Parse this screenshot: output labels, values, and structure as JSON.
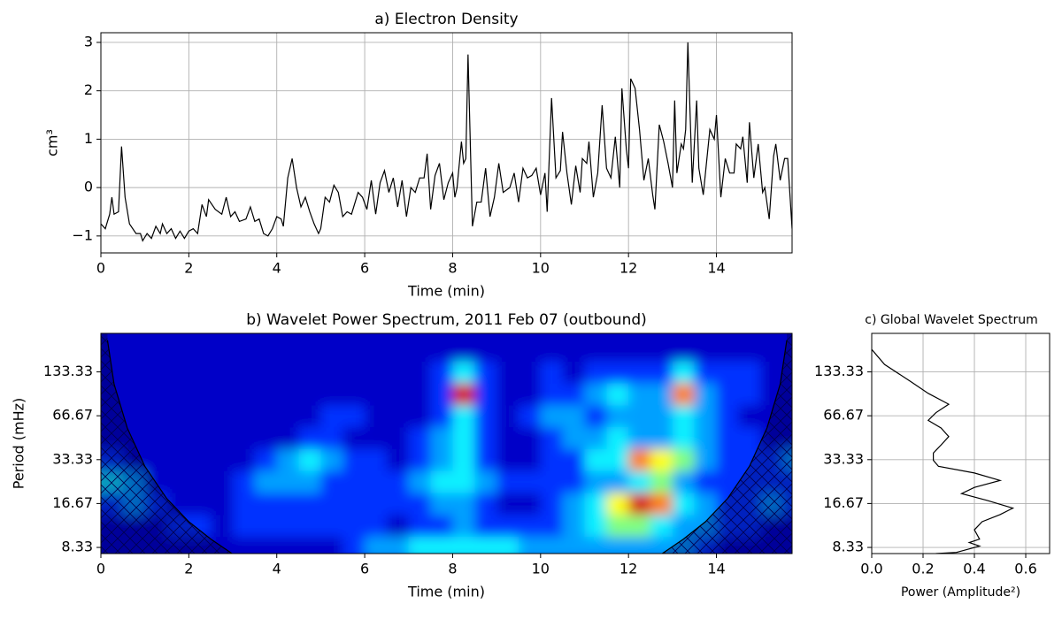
{
  "chart_data": [
    {
      "type": "line",
      "title": "a) Electron Density",
      "xlabel": "Time (min)",
      "ylabel": "cm³",
      "color": "#000000",
      "grid": true,
      "x": [
        0,
        0.1,
        0.2,
        0.25,
        0.3,
        0.4,
        0.47,
        0.55,
        0.65,
        0.8,
        0.9,
        0.95,
        1.05,
        1.15,
        1.25,
        1.35,
        1.4,
        1.5,
        1.6,
        1.7,
        1.8,
        1.9,
        2.0,
        2.1,
        2.2,
        2.3,
        2.4,
        2.45,
        2.6,
        2.75,
        2.85,
        2.95,
        3.05,
        3.15,
        3.3,
        3.4,
        3.5,
        3.6,
        3.7,
        3.8,
        3.9,
        4.0,
        4.1,
        4.15,
        4.25,
        4.35,
        4.45,
        4.55,
        4.65,
        4.75,
        4.85,
        4.95,
        5.0,
        5.1,
        5.2,
        5.3,
        5.4,
        5.5,
        5.6,
        5.7,
        5.85,
        5.95,
        6.05,
        6.15,
        6.25,
        6.35,
        6.45,
        6.55,
        6.65,
        6.75,
        6.85,
        6.95,
        7.05,
        7.15,
        7.25,
        7.35,
        7.42,
        7.5,
        7.6,
        7.7,
        7.8,
        7.9,
        8.0,
        8.05,
        8.1,
        8.2,
        8.25,
        8.3,
        8.35,
        8.45,
        8.55,
        8.65,
        8.75,
        8.85,
        8.95,
        9.05,
        9.15,
        9.3,
        9.4,
        9.5,
        9.6,
        9.7,
        9.8,
        9.9,
        10.0,
        10.1,
        10.15,
        10.25,
        10.35,
        10.45,
        10.5,
        10.6,
        10.7,
        10.8,
        10.9,
        10.95,
        11.05,
        11.1,
        11.2,
        11.3,
        11.4,
        11.5,
        11.6,
        11.7,
        11.8,
        11.85,
        11.95,
        12.0,
        12.05,
        12.15,
        12.25,
        12.35,
        12.45,
        12.55,
        12.6,
        12.7,
        12.8,
        12.9,
        13.0,
        13.05,
        13.1,
        13.2,
        13.25,
        13.3,
        13.35,
        13.45,
        13.55,
        13.6,
        13.7,
        13.85,
        13.95,
        14.0,
        14.1,
        14.2,
        14.3,
        14.4,
        14.45,
        14.55,
        14.6,
        14.7,
        14.75,
        14.85,
        14.95,
        15.05,
        15.1,
        15.2,
        15.3,
        15.35,
        15.45,
        15.55,
        15.62,
        15.72
      ],
      "values": [
        -0.75,
        -0.85,
        -0.55,
        -0.2,
        -0.55,
        -0.5,
        0.85,
        -0.2,
        -0.75,
        -0.95,
        -0.95,
        -1.1,
        -0.95,
        -1.05,
        -0.8,
        -0.95,
        -0.75,
        -0.95,
        -0.85,
        -1.05,
        -0.9,
        -1.05,
        -0.9,
        -0.85,
        -0.95,
        -0.35,
        -0.6,
        -0.25,
        -0.45,
        -0.55,
        -0.2,
        -0.6,
        -0.5,
        -0.7,
        -0.65,
        -0.4,
        -0.7,
        -0.65,
        -0.95,
        -1.0,
        -0.85,
        -0.6,
        -0.65,
        -0.8,
        0.2,
        0.6,
        0.0,
        -0.4,
        -0.2,
        -0.5,
        -0.75,
        -0.95,
        -0.85,
        -0.2,
        -0.3,
        0.05,
        -0.1,
        -0.6,
        -0.5,
        -0.55,
        -0.1,
        -0.2,
        -0.45,
        0.15,
        -0.55,
        0.1,
        0.35,
        -0.1,
        0.2,
        -0.4,
        0.15,
        -0.6,
        0.0,
        -0.1,
        0.2,
        0.2,
        0.7,
        -0.45,
        0.25,
        0.5,
        -0.25,
        0.1,
        0.3,
        -0.2,
        0.0,
        0.95,
        0.5,
        0.6,
        2.75,
        -0.8,
        -0.3,
        -0.3,
        0.4,
        -0.6,
        -0.2,
        0.5,
        -0.1,
        0.0,
        0.3,
        -0.3,
        0.4,
        0.2,
        0.25,
        0.4,
        -0.15,
        0.3,
        -0.5,
        1.85,
        0.2,
        0.35,
        1.15,
        0.3,
        -0.35,
        0.45,
        -0.1,
        0.6,
        0.5,
        0.95,
        -0.2,
        0.3,
        1.7,
        0.4,
        0.2,
        1.05,
        0.0,
        2.05,
        0.8,
        0.4,
        2.25,
        2.05,
        1.2,
        0.15,
        0.6,
        -0.15,
        -0.45,
        1.3,
        0.95,
        0.5,
        0.0,
        1.8,
        0.3,
        0.9,
        0.8,
        1.2,
        3.0,
        0.1,
        1.8,
        0.4,
        -0.15,
        1.2,
        1.0,
        1.5,
        -0.2,
        0.6,
        0.3,
        0.3,
        0.9,
        0.8,
        1.05,
        0.1,
        1.35,
        0.2,
        0.9,
        -0.1,
        0.0,
        -0.65,
        0.65,
        0.9,
        0.15,
        0.6,
        0.6,
        -0.85
      ],
      "xlim": [
        0,
        15.72
      ],
      "ylim": [
        -1.35,
        3.2
      ],
      "xticks": [
        0,
        2,
        4,
        6,
        8,
        10,
        12,
        14
      ],
      "yticks": [
        {
          "value": -1,
          "label": "−1"
        },
        0,
        1,
        2,
        3
      ]
    },
    {
      "type": "heatmap",
      "title": "b) Wavelet Power Spectrum, 2011 Feb 07 (outbound)",
      "xlabel": "Time (min)",
      "ylabel": "Period (mHz)",
      "log_y": true,
      "colors": [
        "#0000c8",
        "#0030ff",
        "#00a0ff",
        "#10f0ff",
        "#80ff80",
        "#ffff00",
        "#ff8000",
        "#d80000"
      ],
      "x": [
        0.25,
        0.75,
        1.25,
        1.75,
        2.25,
        2.75,
        3.25,
        3.75,
        4.25,
        4.75,
        5.25,
        5.75,
        6.25,
        6.75,
        7.25,
        7.75,
        8.25,
        8.75,
        9.25,
        9.75,
        10.25,
        10.75,
        11.25,
        11.75,
        12.25,
        12.75,
        13.25,
        13.75,
        14.25,
        14.75,
        15.25,
        15.75
      ],
      "y": [
        8.33,
        11.8,
        16.67,
        23.6,
        33.33,
        47,
        66.67,
        94,
        133.33,
        188
      ],
      "z": [
        [
          0,
          0,
          0,
          0,
          0,
          0,
          0,
          0,
          0,
          0,
          0,
          1,
          2,
          2,
          3,
          3,
          3,
          3,
          3,
          2,
          2,
          2,
          2,
          2,
          2,
          2,
          2,
          1,
          0,
          0,
          0,
          0
        ],
        [
          0,
          0,
          0,
          1,
          1,
          0,
          1,
          1,
          1,
          1,
          1,
          1,
          1,
          0,
          1,
          1,
          2,
          1,
          1,
          1,
          1,
          2,
          3,
          4,
          4,
          3,
          2,
          2,
          1,
          1,
          0,
          0
        ],
        [
          1,
          2,
          1,
          0,
          0,
          0,
          1,
          1,
          1,
          1,
          1,
          1,
          1,
          1,
          1,
          2,
          2,
          1,
          0,
          0,
          1,
          2,
          3,
          5,
          7,
          6,
          3,
          2,
          1,
          1,
          2,
          1
        ],
        [
          3,
          2,
          0,
          0,
          0,
          0,
          1,
          2,
          2,
          2,
          1,
          1,
          1,
          1,
          2,
          3,
          3,
          2,
          1,
          1,
          1,
          1,
          2,
          2,
          3,
          4,
          2,
          1,
          1,
          1,
          1,
          1
        ],
        [
          1,
          0,
          0,
          0,
          0,
          0,
          0,
          1,
          2,
          3,
          2,
          1,
          1,
          0,
          1,
          2,
          3,
          1,
          0,
          0,
          1,
          1,
          3,
          3,
          6,
          5,
          4,
          2,
          1,
          1,
          1,
          2
        ],
        [
          0,
          0,
          0,
          0,
          0,
          0,
          0,
          0,
          0,
          1,
          1,
          0,
          0,
          0,
          1,
          2,
          3,
          1,
          0,
          0,
          1,
          2,
          2,
          3,
          2,
          2,
          3,
          2,
          1,
          1,
          0,
          0
        ],
        [
          0,
          0,
          0,
          0,
          0,
          0,
          0,
          0,
          0,
          0,
          1,
          1,
          0,
          0,
          0,
          1,
          3,
          1,
          0,
          1,
          2,
          2,
          1,
          2,
          2,
          2,
          3,
          2,
          1,
          0,
          0,
          0
        ],
        [
          0,
          0,
          0,
          0,
          0,
          0,
          0,
          0,
          0,
          0,
          0,
          0,
          0,
          0,
          0,
          1,
          7,
          1,
          0,
          0,
          1,
          1,
          2,
          3,
          2,
          2,
          6,
          2,
          1,
          1,
          0,
          0
        ],
        [
          0,
          0,
          0,
          0,
          0,
          0,
          0,
          0,
          0,
          0,
          0,
          0,
          0,
          0,
          0,
          1,
          3,
          1,
          0,
          0,
          1,
          0,
          1,
          1,
          1,
          1,
          3,
          1,
          1,
          1,
          0,
          0
        ],
        [
          0,
          0,
          0,
          0,
          0,
          0,
          0,
          0,
          0,
          0,
          0,
          0,
          0,
          0,
          0,
          0,
          0,
          0,
          0,
          0,
          0,
          0,
          0,
          0,
          0,
          0,
          0,
          0,
          0,
          0,
          0,
          0
        ]
      ],
      "coi": {
        "x": [
          0.15,
          0.3,
          0.6,
          1.0,
          1.5,
          2.0,
          2.5,
          3.0,
          12.75,
          13.25,
          13.75,
          14.25,
          14.75,
          15.15,
          15.45,
          15.6
        ],
        "values": [
          220,
          110,
          55,
          30,
          18,
          12.5,
          9.5,
          7.5,
          7.5,
          9.5,
          12.5,
          18,
          30,
          55,
          110,
          220
        ]
      },
      "xlim": [
        0,
        15.72
      ],
      "ylim": [
        7.56,
        245
      ],
      "xticks": [
        0,
        2,
        4,
        6,
        8,
        10,
        12,
        14
      ],
      "yticks": [
        8.33,
        16.67,
        33.33,
        66.67,
        133.33
      ]
    },
    {
      "type": "profile",
      "title": "c) Global Wavelet Spectrum",
      "xlabel": "Power (Amplitude²)",
      "color": "#000000",
      "grid": true,
      "log_y": true,
      "values": [
        0.0,
        0.05,
        0.15,
        0.22,
        0.3,
        0.25,
        0.22,
        0.27,
        0.3,
        0.27,
        0.24,
        0.24,
        0.26,
        0.4,
        0.5,
        0.4,
        0.35,
        0.45,
        0.55,
        0.5,
        0.43,
        0.4,
        0.42,
        0.38,
        0.42,
        0.33,
        0.25
      ],
      "y": [
        190,
        150,
        115,
        95,
        80,
        70,
        62,
        55,
        48,
        42,
        37,
        33,
        30,
        27,
        24,
        21.5,
        19.5,
        17.5,
        15.5,
        14,
        12.5,
        11,
        9.5,
        9,
        8.5,
        7.7,
        7.56
      ],
      "xlim": [
        0,
        0.693
      ],
      "ylim": [
        7.56,
        245
      ],
      "xticks": [
        {
          "value": 0,
          "label": "0.0"
        },
        0.2,
        0.4,
        0.6
      ],
      "yticks": [
        8.33,
        16.67,
        33.33,
        66.67,
        133.33
      ]
    }
  ]
}
